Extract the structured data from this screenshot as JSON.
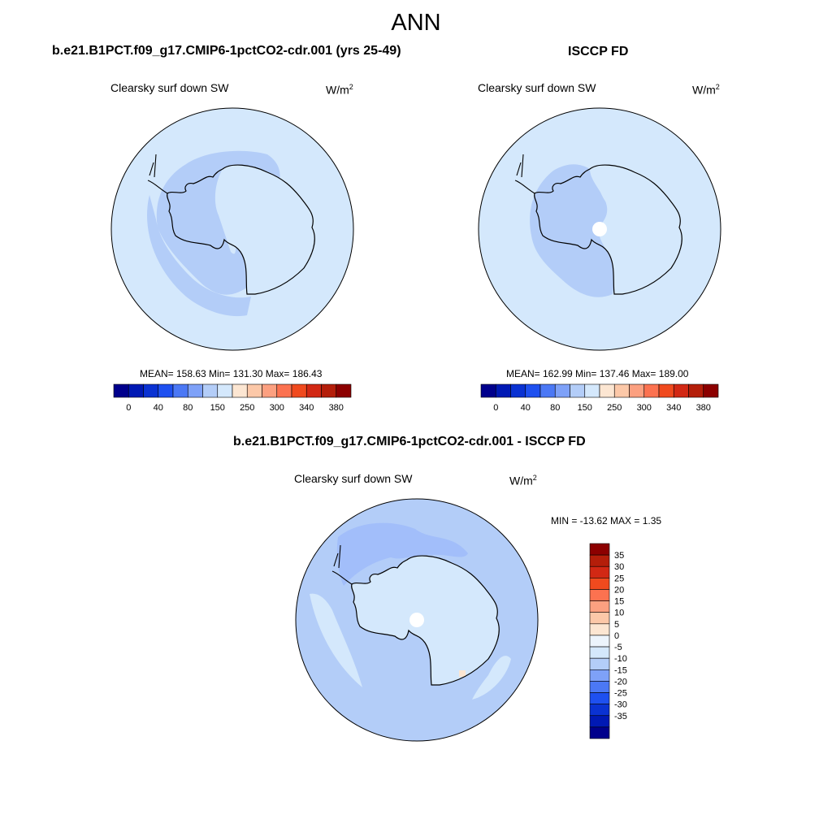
{
  "suptitle": "ANN",
  "colors": {
    "land_outline": "#000000",
    "panel_border": "#000000"
  },
  "panels": [
    {
      "title": "b.e21.B1PCT.f09_g17.CMIP6-1pctCO2-cdr.001 (yrs 25-49)",
      "variable": "Clearsky surf down SW",
      "units_base": "W/m",
      "units_exp": "2",
      "stats": "MEAN= 158.63  Min= 131.30  Max= 186.43",
      "fill_ocean": "#d4e8fc",
      "fill_band": "#b3cdf8",
      "fill_interior": "#d4e8fc"
    },
    {
      "title": "ISCCP FD",
      "variable": "Clearsky surf down SW",
      "units_base": "W/m",
      "units_exp": "2",
      "stats": "MEAN= 162.99  Min= 137.46  Max= 189.00",
      "fill_ocean": "#d4e8fc",
      "fill_band": "#b3cdf8",
      "fill_interior": "#d4e8fc"
    },
    {
      "title": "b.e21.B1PCT.f09_g17.CMIP6-1pctCO2-cdr.001 - ISCCP FD",
      "variable": "Clearsky surf down SW",
      "units_base": "W/m",
      "units_exp": "2",
      "stats": "MIN = -13.62 MAX =   1.35",
      "fill_ocean": "#b3cdf8",
      "fill_band": "#a2befa",
      "fill_interior": "#d4e8fc"
    }
  ],
  "horiz_colorbar": {
    "colors": [
      "#00008c",
      "#0019b4",
      "#0a32d2",
      "#1e50f0",
      "#4b78f5",
      "#7ea1f8",
      "#b3cdf8",
      "#d4e8fc",
      "#fce6d2",
      "#fcc8a8",
      "#fca080",
      "#fc7250",
      "#f04a1e",
      "#d22814",
      "#b41e0a",
      "#8c0000"
    ],
    "tick_labels": [
      "0",
      "40",
      "80",
      "150",
      "250",
      "300",
      "340",
      "380"
    ]
  },
  "vert_colorbar": {
    "colors": [
      "#8c0000",
      "#b41e0a",
      "#d22814",
      "#f04a1e",
      "#fc7250",
      "#fca080",
      "#fcc8a8",
      "#fce6d2",
      "#ecf4fc",
      "#d4e8fc",
      "#b3cdf8",
      "#7ea1f8",
      "#4b78f5",
      "#1e50f0",
      "#0a32d2",
      "#0019b4",
      "#00008c"
    ],
    "tick_labels": [
      "35",
      "30",
      "25",
      "20",
      "15",
      "10",
      "5",
      "0",
      "-5",
      "-10",
      "-15",
      "-20",
      "-25",
      "-30",
      "-35"
    ]
  }
}
